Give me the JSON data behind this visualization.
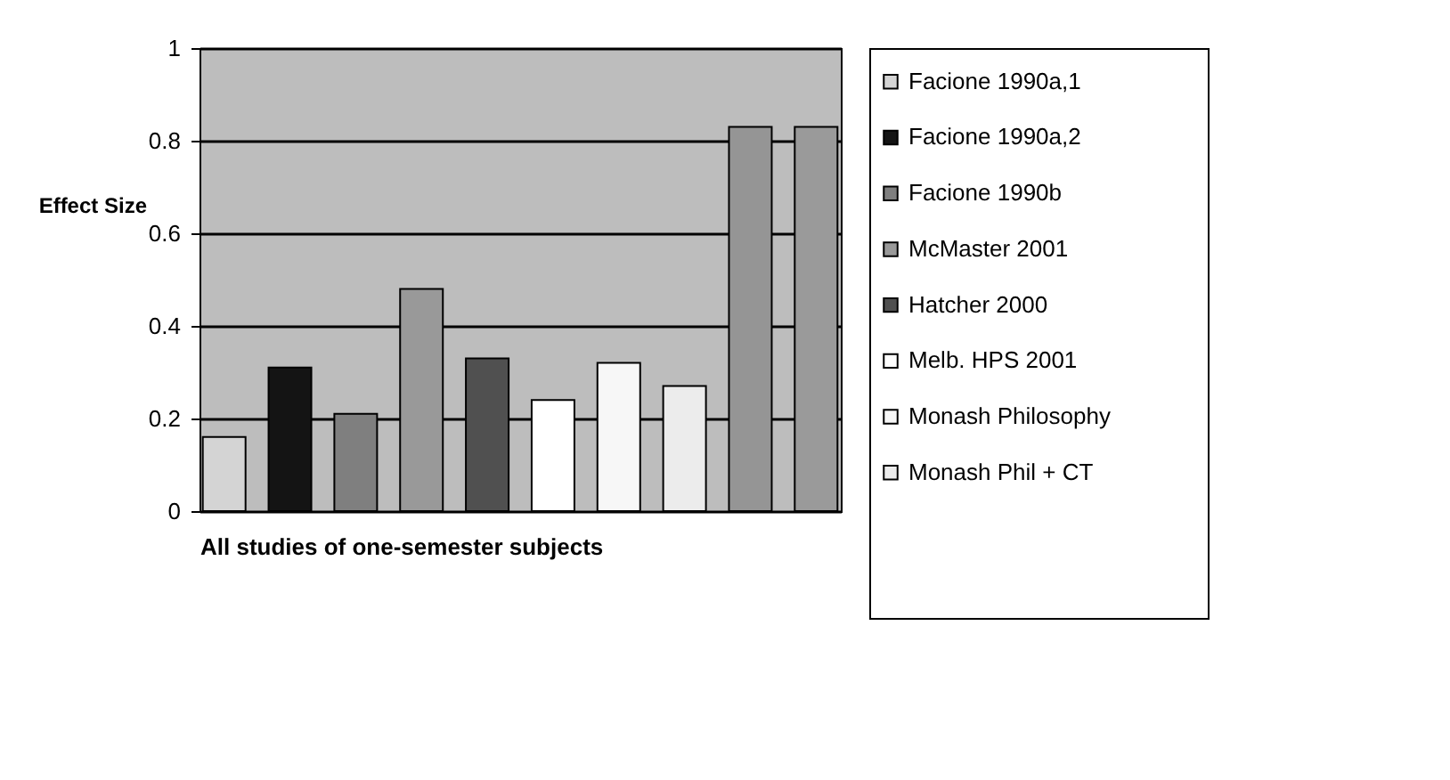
{
  "chart_data": {
    "type": "bar",
    "ylabel": "Effect Size",
    "xlabel": "All studies of one-semester subjects",
    "categories": [
      null
    ],
    "series": [
      {
        "name": "Facione 1990a,1",
        "color": "#d4d4d4",
        "values": [
          0.16
        ]
      },
      {
        "name": "Facione 1990a,2",
        "color": "#141414",
        "values": [
          0.31
        ]
      },
      {
        "name": "Facione 1990b",
        "color": "#7f7f7f",
        "values": [
          0.21
        ]
      },
      {
        "name": "McMaster 2001",
        "color": "#999999",
        "values": [
          0.48
        ]
      },
      {
        "name": "Hatcher 2000",
        "color": "#505050",
        "values": [
          0.33
        ]
      },
      {
        "name": "Melb. HPS 2001",
        "color": "#ffffff",
        "values": [
          0.24
        ]
      },
      {
        "name": "Monash Philosophy",
        "color": "#f7f7f7",
        "values": [
          0.32
        ]
      },
      {
        "name": "Monash Phil + CT",
        "color": "#ececec",
        "values": [
          0.27
        ]
      },
      {
        "color": "#959595",
        "values": [
          0.83
        ]
      },
      {
        "color": "#9a9a9a",
        "values": [
          0.83
        ]
      }
    ],
    "ylim": [
      0,
      1
    ],
    "yticks": [
      0,
      0.2,
      0.4,
      0.6,
      0.8,
      1
    ],
    "grid": "y",
    "legend": "right",
    "tick_labels": "y"
  }
}
